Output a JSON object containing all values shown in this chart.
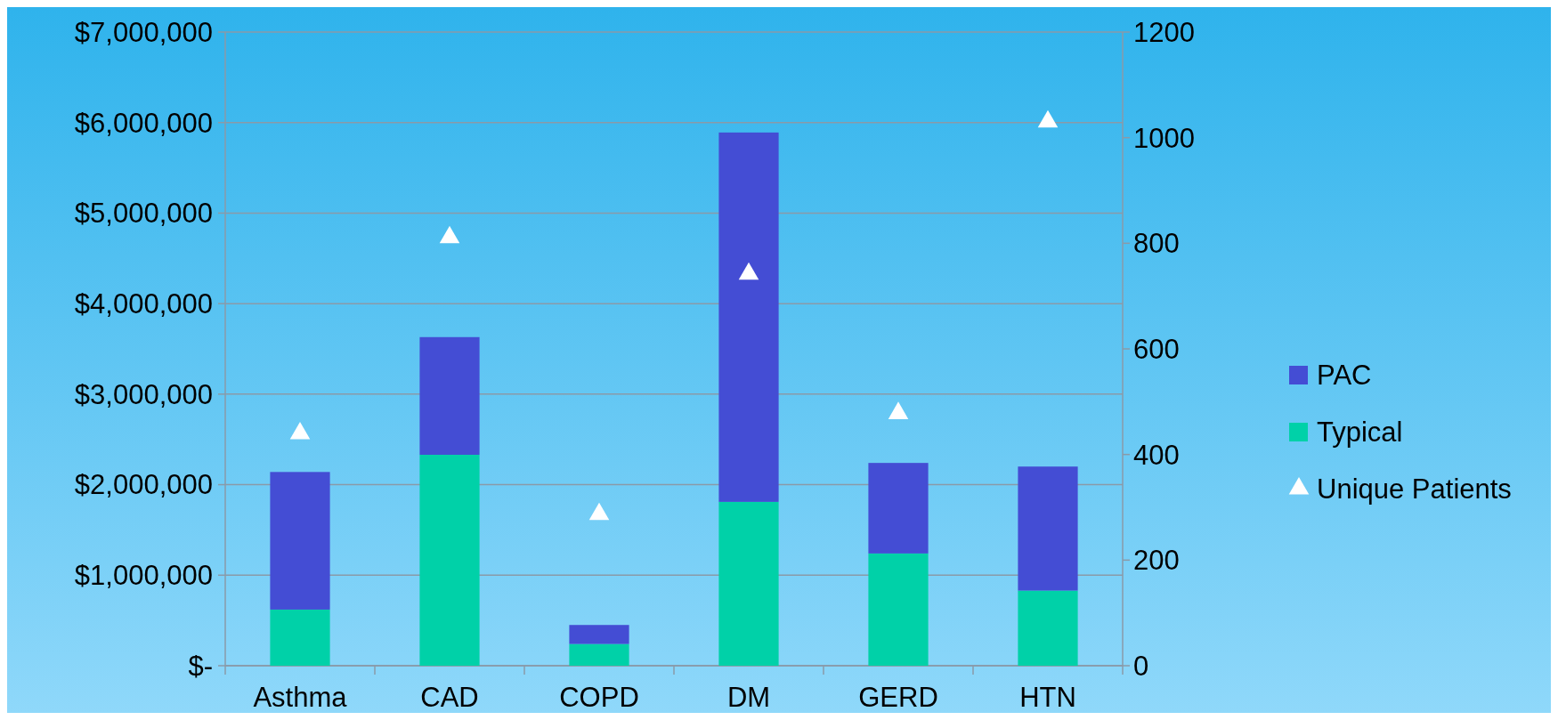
{
  "chart_data": {
    "type": "bar",
    "stacked": true,
    "categories": [
      "Asthma",
      "CAD",
      "COPD",
      "DM",
      "GERD",
      "HTN"
    ],
    "series": [
      {
        "name": "Typical",
        "color": "#00d1a8",
        "values": [
          620000,
          2330000,
          240000,
          1810000,
          1240000,
          830000
        ]
      },
      {
        "name": "PAC",
        "color": "#444dd4",
        "values": [
          1520000,
          1300000,
          210000,
          4080000,
          1000000,
          1370000
        ]
      },
      {
        "name": "Unique Patients",
        "type": "scatter",
        "axis": "y2",
        "marker": "triangle",
        "color": "#ffffff",
        "values": [
          440,
          811,
          287,
          742,
          478,
          1030
        ]
      }
    ],
    "ylim": [
      0,
      7000000
    ],
    "yticks": [
      {
        "value": 0,
        "label": "$-"
      },
      {
        "value": 1000000,
        "label": "$1,000,000"
      },
      {
        "value": 2000000,
        "label": "$2,000,000"
      },
      {
        "value": 3000000,
        "label": "$3,000,000"
      },
      {
        "value": 4000000,
        "label": "$4,000,000"
      },
      {
        "value": 5000000,
        "label": "$5,000,000"
      },
      {
        "value": 6000000,
        "label": "$6,000,000"
      },
      {
        "value": 7000000,
        "label": "$7,000,000"
      }
    ],
    "y2lim": [
      0,
      1200
    ],
    "y2ticks": [
      0,
      200,
      400,
      600,
      800,
      1000,
      1200
    ],
    "grid": "y",
    "legend": "right"
  }
}
